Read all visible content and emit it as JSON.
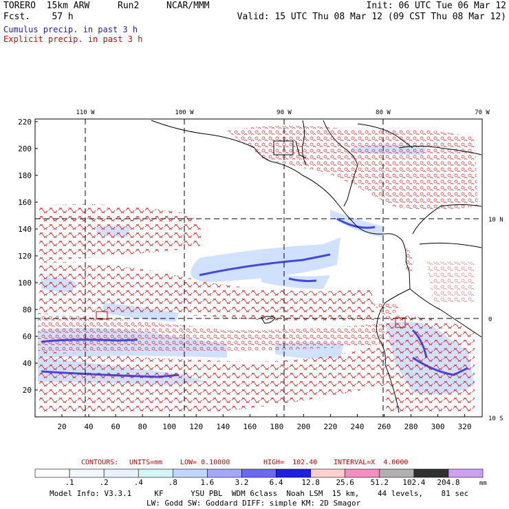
{
  "header": {
    "model": "TORERO  15km ARW",
    "run": "Run2",
    "org": "NCAR/MMM",
    "fcst": "Fcst.    57 h",
    "init": "Init: 06 UTC Tue 06 Mar 12",
    "valid": "Valid: 15 UTC Thu 08 Mar 12 (09 CST Thu 08 Mar 12)"
  },
  "legend_titles": {
    "cumulus": "Cumulus precip. in past 3 h",
    "explicit": "Explicit precip. in past 3 h"
  },
  "colors": {
    "cumulus": "#1f1fb0",
    "explicit": "#e00000",
    "contour_text": "#cc0000"
  },
  "axes": {
    "lon_labels": [
      "110 W",
      "100 W",
      "90 W",
      "80 W",
      "70 W"
    ],
    "lat_labels": [
      "10 N",
      "0",
      "10 S"
    ],
    "x_ticks": [
      "20",
      "40",
      "60",
      "80",
      "100",
      "120",
      "140",
      "160",
      "180",
      "200",
      "220",
      "240",
      "260",
      "280",
      "300",
      "320"
    ],
    "y_ticks": [
      "220",
      "200",
      "180",
      "160",
      "140",
      "120",
      "100",
      "80",
      "60",
      "40",
      "20"
    ]
  },
  "contour_info": {
    "contours": "CONTOURS:",
    "units": "UNITS=mm",
    "low": "LOW= 0.10000",
    "high": "HIGH=  102.40",
    "interval": "INTERVAL=X  4.0000"
  },
  "colorbar": {
    "labels": [
      ".1",
      ".2",
      ".4",
      ".8",
      "1.6",
      "3.2",
      "6.4",
      "12.8",
      "25.6",
      "51.2",
      "102.4",
      "204.8"
    ],
    "unit": "mm",
    "colors": [
      "#ffffff",
      "#f2f7ff",
      "#e6f0ff",
      "#d4f5f5",
      "#c0d8ff",
      "#a3a8f5",
      "#6a6af0",
      "#2020e0",
      "#ffd0d0",
      "#f090c0",
      "#b0b0b0",
      "#303030",
      "#d0a0f0"
    ]
  },
  "footer": {
    "line1": "Model Info: V3.3.1     KF      YSU PBL  WDM 6class  Noah LSM  15 km,    44 levels,    81 sec",
    "line2": "LW: Godd SW: Goddard DIFF: simple KM: 2D Smagor"
  }
}
